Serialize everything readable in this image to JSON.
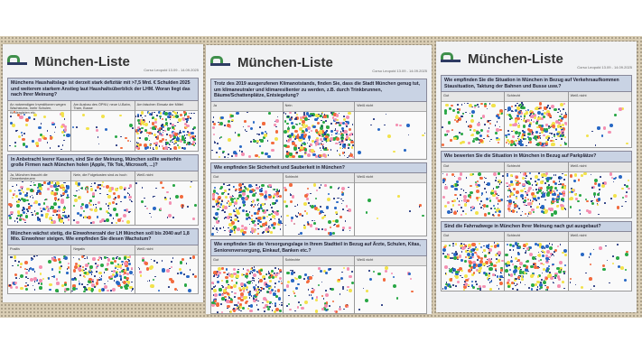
{
  "colors": {
    "red": "#f26a3d",
    "yellow": "#f2e24a",
    "blue": "#2767c4",
    "green": "#28a745",
    "pink": "#f48fb1",
    "navy": "#1c2f7a",
    "question_bg": "#c9d3e4",
    "logo_green": "#3f8f4b",
    "logo_navy": "#2e3b63"
  },
  "posters": [
    {
      "title": "München-Liste",
      "date": "Corso Leopold 13.09 - 14.09.2025",
      "questions": [
        {
          "text": "Münchens Haushaltslage ist derzeit stark defizitär mit >7,5 Mrd. € Schulden 2025 und weiterem starkem Anstieg laut Haushaltsüberblick der LHM. Woran liegt das nach Ihrer Meinung?",
          "options": [
            {
              "label": "An notwendigen Investitionen wegen Wachstums, mehr Schulen, Kindergärten etc.",
              "dots": 60
            },
            {
              "label": "Am Ausbau des ÖPNV, neue U-Bahn, Tram, Busse",
              "dots": 20
            },
            {
              "label": "Am falschen Einsatz der Mittel",
              "dots": 260
            }
          ]
        },
        {
          "text": "In Anbetracht leerer Kassen, sind Sie der Meinung, München sollte weiterhin große Firmen nach München holen (Apple, Tik Tok, Microsoft, ...)?",
          "options": [
            {
              "label": "Ja, München braucht die Gewerbesteuern",
              "dots": 200
            },
            {
              "label": "Nein, die Folgekosten sind zu hoch",
              "dots": 120
            },
            {
              "label": "Weiß nicht",
              "dots": 35
            }
          ]
        },
        {
          "text": "München wächst stetig, die Einwohnerzahl der LH München soll bis 2040 auf 1,8 Mio. Einwohner steigen. Wie empfinden Sie diesen Wachstum?",
          "options": [
            {
              "label": "Positiv",
              "dots": 90
            },
            {
              "label": "Negativ",
              "dots": 180
            },
            {
              "label": "Weiß nicht",
              "dots": 50
            }
          ]
        }
      ]
    },
    {
      "title": "München-Liste",
      "date": "Corso Leopold 13.09 - 14.09.2025",
      "questions": [
        {
          "text": "Trotz des 2019 ausgerufenen Klimanotstands, finden Sie, dass die Stadt München genug tut, um klimaneutraler und klimaresilienter zu werden, z.B. durch Trinkbrunnen, Bäume/Schattenplätze, Entsiegelung?",
          "options": [
            {
              "label": "Ja",
              "dots": 90
            },
            {
              "label": "Nein",
              "dots": 300
            },
            {
              "label": "Weiß nicht",
              "dots": 15
            }
          ]
        },
        {
          "text": "Wie empfinden Sie Sicherheit und Sauberkeit in München?",
          "options": [
            {
              "label": "Gut",
              "dots": 300
            },
            {
              "label": "Schlecht",
              "dots": 110
            },
            {
              "label": "Weiß nicht",
              "dots": 8
            }
          ]
        },
        {
          "text": "Wie empfinden Sie die Versorgungslage in Ihrem Stadtteil in Bezug auf Ärzte, Schulen, Kitas, Seniorenversorgung, Einkauf, Banken etc.?",
          "options": [
            {
              "label": "Gut",
              "dots": 280
            },
            {
              "label": "Schlechte",
              "dots": 90
            },
            {
              "label": "Weiß nicht",
              "dots": 20
            }
          ]
        }
      ]
    },
    {
      "title": "München-Liste",
      "date": "Corso Leopold 13.09 - 14.09.2025",
      "questions": [
        {
          "text": "Wie empfinden Sie die Situation in München in Bezug auf Verkehrsaufkommen Stausituation, Taktung der Bahnen und Busse usw.?",
          "options": [
            {
              "label": "Gut",
              "dots": 110
            },
            {
              "label": "Schlecht",
              "dots": 280
            },
            {
              "label": "Weiß nicht",
              "dots": 12
            }
          ]
        },
        {
          "text": "Wie bewerten Sie die Situation in München in Bezug auf Parkplätze?",
          "options": [
            {
              "label": "Gut",
              "dots": 130
            },
            {
              "label": "Schlecht",
              "dots": 230
            },
            {
              "label": "Weiß nicht",
              "dots": 70
            }
          ]
        },
        {
          "text": "Sind die Fahrradwege in München Ihrer Meinung nach gut ausgebaut?",
          "options": [
            {
              "label": "Gut",
              "dots": 220
            },
            {
              "label": "Schlecht",
              "dots": 200
            },
            {
              "label": "Weiß nicht",
              "dots": 30
            }
          ]
        }
      ]
    }
  ]
}
